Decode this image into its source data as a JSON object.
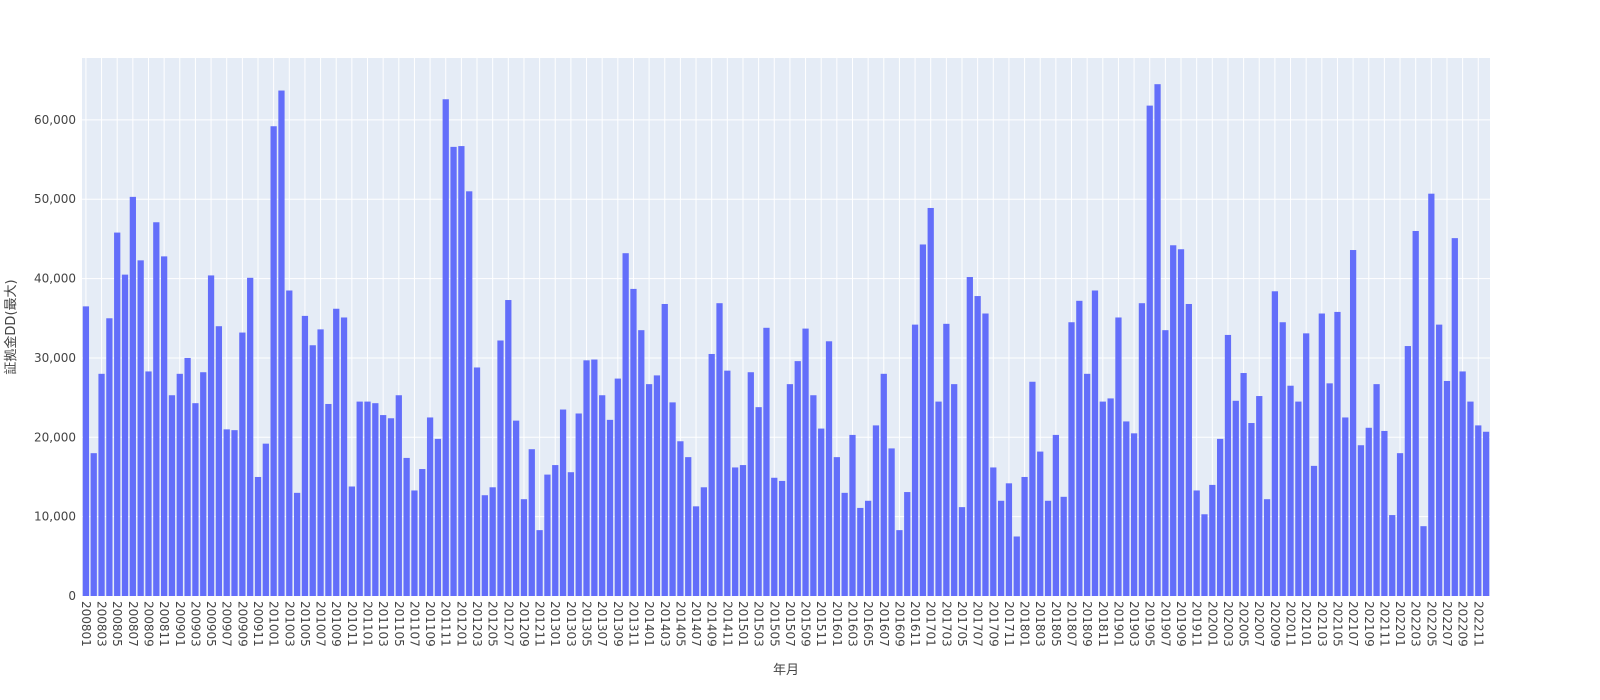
{
  "chart_data": {
    "type": "bar",
    "xlabel": "年月",
    "ylabel": "証拠金DD(最大)",
    "ylim": [
      0,
      67800
    ],
    "y_ticks": [
      0,
      10000,
      20000,
      30000,
      40000,
      50000,
      60000
    ],
    "y_tick_labels": [
      "0",
      "10,000",
      "20,000",
      "30,000",
      "40,000",
      "50,000",
      "60,000"
    ],
    "grid": true,
    "legend": "none",
    "bar_color": "#636efa",
    "plot_background": "#e5ecf6",
    "x_tick_labels": [
      "200801",
      "200803",
      "200805",
      "200807",
      "200809",
      "200811",
      "200901",
      "200903",
      "200905",
      "200907",
      "200909",
      "200911",
      "201001",
      "201003",
      "201005",
      "201007",
      "201009",
      "201011",
      "201101",
      "201103",
      "201105",
      "201107",
      "201109",
      "201111",
      "201201",
      "201203",
      "201205",
      "201207",
      "201209",
      "201211",
      "201301",
      "201303",
      "201305",
      "201307",
      "201309",
      "201311",
      "201401",
      "201403",
      "201405",
      "201407",
      "201409",
      "201411",
      "201501",
      "201503",
      "201505",
      "201507",
      "201509",
      "201511",
      "201601",
      "201603",
      "201605",
      "201607",
      "201609",
      "201611",
      "201701",
      "201703",
      "201705",
      "201707",
      "201709",
      "201711",
      "201801",
      "201803",
      "201805",
      "201807",
      "201809",
      "201811",
      "201901",
      "201903",
      "201905",
      "201907",
      "201909",
      "201911",
      "202001",
      "202003",
      "202005",
      "202007",
      "202009",
      "202011",
      "202101",
      "202103",
      "202105",
      "202107",
      "202109",
      "202111",
      "202201",
      "202203",
      "202205",
      "202207",
      "202209",
      "202211"
    ],
    "categories": [
      "200801",
      "200802",
      "200803",
      "200804",
      "200805",
      "200806",
      "200807",
      "200808",
      "200809",
      "200810",
      "200811",
      "200812",
      "200901",
      "200902",
      "200903",
      "200904",
      "200905",
      "200906",
      "200907",
      "200908",
      "200909",
      "200910",
      "200911",
      "200912",
      "201001",
      "201002",
      "201003",
      "201004",
      "201005",
      "201006",
      "201007",
      "201008",
      "201009",
      "201010",
      "201011",
      "201012",
      "201101",
      "201102",
      "201103",
      "201104",
      "201105",
      "201106",
      "201107",
      "201108",
      "201109",
      "201110",
      "201111",
      "201112",
      "201201",
      "201202",
      "201203",
      "201204",
      "201205",
      "201206",
      "201207",
      "201208",
      "201209",
      "201210",
      "201211",
      "201212",
      "201301",
      "201302",
      "201303",
      "201304",
      "201305",
      "201306",
      "201307",
      "201308",
      "201309",
      "201310",
      "201311",
      "201312",
      "201401",
      "201402",
      "201403",
      "201404",
      "201405",
      "201406",
      "201407",
      "201408",
      "201409",
      "201410",
      "201411",
      "201412",
      "201501",
      "201502",
      "201503",
      "201504",
      "201505",
      "201506",
      "201507",
      "201508",
      "201509",
      "201510",
      "201511",
      "201512",
      "201601",
      "201602",
      "201603",
      "201604",
      "201605",
      "201606",
      "201607",
      "201608",
      "201609",
      "201610",
      "201611",
      "201612",
      "201701",
      "201702",
      "201703",
      "201704",
      "201705",
      "201706",
      "201707",
      "201708",
      "201709",
      "201710",
      "201711",
      "201712",
      "201801",
      "201802",
      "201803",
      "201804",
      "201805",
      "201806",
      "201807",
      "201808",
      "201809",
      "201810",
      "201811",
      "201812",
      "201901",
      "201902",
      "201903",
      "201904",
      "201905",
      "201906",
      "201907",
      "201908",
      "201909",
      "201910",
      "201911",
      "201912",
      "202001",
      "202002",
      "202003",
      "202004",
      "202005",
      "202006",
      "202007",
      "202008",
      "202009",
      "202010",
      "202011",
      "202012",
      "202101",
      "202102",
      "202103",
      "202104",
      "202105",
      "202106",
      "202107",
      "202108",
      "202109",
      "202110",
      "202111",
      "202112",
      "202201",
      "202202",
      "202203",
      "202204",
      "202205",
      "202206",
      "202207",
      "202208",
      "202209",
      "202210",
      "202211",
      "202212"
    ],
    "values": [
      36500,
      18000,
      28000,
      35000,
      45800,
      40500,
      50300,
      42300,
      28300,
      47100,
      42800,
      25300,
      28000,
      30000,
      24300,
      28200,
      40400,
      34000,
      21000,
      20900,
      33200,
      40100,
      15000,
      19200,
      59200,
      63700,
      38500,
      13000,
      35300,
      31600,
      33600,
      24200,
      36200,
      35100,
      13800,
      24500,
      24500,
      24300,
      22800,
      22400,
      25300,
      17400,
      13300,
      16000,
      22500,
      19800,
      62600,
      56600,
      56700,
      51000,
      28800,
      12700,
      13700,
      32200,
      37300,
      22100,
      12200,
      18500,
      8300,
      15300,
      16500,
      23500,
      15600,
      23000,
      29700,
      29800,
      25300,
      22200,
      27400,
      43200,
      38700,
      33500,
      26700,
      27800,
      36800,
      24400,
      19500,
      17500,
      11300,
      13700,
      30500,
      36900,
      28400,
      16200,
      16500,
      28200,
      23800,
      33800,
      14900,
      14500,
      26700,
      29600,
      33700,
      25300,
      21100,
      32100,
      17500,
      13000,
      20300,
      11100,
      12000,
      21500,
      28000,
      18600,
      8300,
      13100,
      34200,
      44300,
      48900,
      24500,
      34300,
      26700,
      11200,
      40200,
      37800,
      35600,
      16200,
      12000,
      14200,
      7500,
      15000,
      27000,
      18200,
      12000,
      20300,
      12500,
      34500,
      37200,
      28000,
      38500,
      24500,
      24900,
      35100,
      22000,
      20500,
      36900,
      61800,
      64500,
      33500,
      44200,
      43700,
      36800,
      13300,
      10300,
      14000,
      19800,
      32900,
      24600,
      28100,
      21800,
      25200,
      12200,
      38400,
      34500,
      26500,
      24500,
      33100,
      16400,
      35600,
      26800,
      35800,
      22500,
      43600,
      19000,
      21200,
      26700,
      20800,
      10200,
      18000,
      31500,
      46000,
      8800,
      50700,
      34200,
      27100,
      45100,
      28300,
      24500,
      21500,
      20700
    ]
  }
}
